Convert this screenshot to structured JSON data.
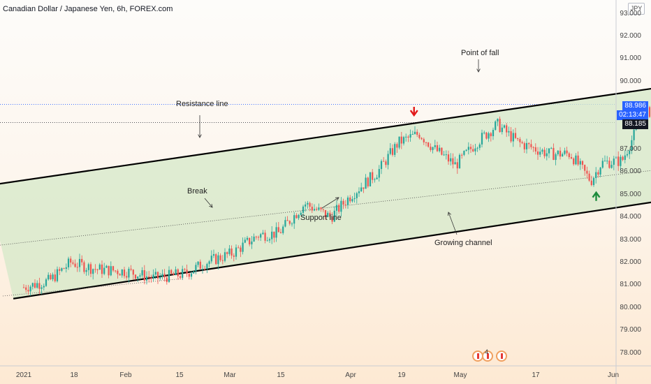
{
  "header": {
    "title": "Canadian Dollar / Japanese Yen, 6h, FOREX.com",
    "currency": "JPY"
  },
  "price_tags": {
    "last_price": "88.986",
    "countdown": "02:13:47",
    "marked_price": "88.185"
  },
  "annotations": {
    "resistance": "Resistance line",
    "break": "Break",
    "support": "Support line",
    "point_of_fall": "Point of fall",
    "growing_channel": "Growing channel"
  },
  "events": {
    "count": "4"
  },
  "colors": {
    "up_candle": "#26a69a",
    "down_candle": "#ef5350",
    "channel_fill": "#d4e8c8",
    "projection": "#2f7fd9",
    "signal_down": "#e21a1a",
    "signal_up": "#1c8c3c",
    "last_price_tag": "#2962ff"
  },
  "chart_data": {
    "type": "candlestick",
    "x_axis_labels": [
      "2021",
      "18",
      "Feb",
      "15",
      "Mar",
      "15",
      "Apr",
      "19",
      "May",
      "17",
      "Jun"
    ],
    "y_axis_labels": [
      "78.000",
      "79.000",
      "80.000",
      "81.000",
      "82.000",
      "83.000",
      "84.000",
      "85.000",
      "86.000",
      "87.000",
      "88.000",
      "89.000",
      "90.000",
      "91.000",
      "92.000",
      "93.000"
    ],
    "ylim": [
      77.3,
      93.7
    ],
    "last_price": 88.986,
    "marked_price": 88.185,
    "close_path": [
      {
        "date": "2021-01-01",
        "close": 80.9
      },
      {
        "date": "2021-01-06",
        "close": 81.2
      },
      {
        "date": "2021-01-10",
        "close": 82.0
      },
      {
        "date": "2021-01-15",
        "close": 81.7
      },
      {
        "date": "2021-01-21",
        "close": 81.6
      },
      {
        "date": "2021-01-26",
        "close": 81.3
      },
      {
        "date": "2021-02-01",
        "close": 81.5
      },
      {
        "date": "2021-02-05",
        "close": 82.0
      },
      {
        "date": "2021-02-10",
        "close": 82.4
      },
      {
        "date": "2021-02-15",
        "close": 83.2
      },
      {
        "date": "2021-02-19",
        "close": 83.3
      },
      {
        "date": "2021-02-24",
        "close": 84.6
      },
      {
        "date": "2021-03-01",
        "close": 84.0
      },
      {
        "date": "2021-03-05",
        "close": 85.0
      },
      {
        "date": "2021-03-10",
        "close": 86.0
      },
      {
        "date": "2021-03-14",
        "close": 87.3
      },
      {
        "date": "2021-03-18",
        "close": 87.7
      },
      {
        "date": "2021-03-21",
        "close": 87.0
      },
      {
        "date": "2021-03-25",
        "close": 86.3
      },
      {
        "date": "2021-03-29",
        "close": 87.3
      },
      {
        "date": "2021-04-02",
        "close": 88.1
      },
      {
        "date": "2021-04-06",
        "close": 87.3
      },
      {
        "date": "2021-04-12",
        "close": 86.8
      },
      {
        "date": "2021-04-16",
        "close": 86.8
      },
      {
        "date": "2021-04-20",
        "close": 85.6
      },
      {
        "date": "2021-04-22",
        "close": 86.4
      },
      {
        "date": "2021-04-26",
        "close": 86.5
      },
      {
        "date": "2021-04-30",
        "close": 88.5
      },
      {
        "date": "2021-05-03",
        "close": 88.9
      },
      {
        "date": "2021-05-06",
        "close": 88.9
      }
    ],
    "channel": {
      "resistance": [
        {
          "date": "2020-12-25",
          "price": 85.4
        },
        {
          "date": "2021-05-23",
          "price": 90.4
        }
      ],
      "support": [
        {
          "date": "2020-12-30",
          "price": 80.4
        },
        {
          "date": "2021-05-23",
          "price": 85.4
        }
      ],
      "middle": [
        {
          "date": "2020-12-25",
          "price": 82.7
        },
        {
          "date": "2021-05-22",
          "price": 86.6
        }
      ]
    },
    "projection": [
      {
        "date": "2021-05-06",
        "price": 88.8
      },
      {
        "date": "2021-05-08",
        "price": 89.5
      },
      {
        "date": "2021-05-13",
        "price": 87.7
      },
      {
        "date": "2021-05-15",
        "price": 88.2
      },
      {
        "date": "2021-05-19",
        "price": 86.3
      }
    ],
    "signals": [
      {
        "type": "down",
        "date": "2021-03-17",
        "price": 88.6
      },
      {
        "type": "down",
        "date": "2021-05-08",
        "price": 90.0
      },
      {
        "type": "up",
        "date": "2021-04-21",
        "price": 85.0
      }
    ]
  }
}
